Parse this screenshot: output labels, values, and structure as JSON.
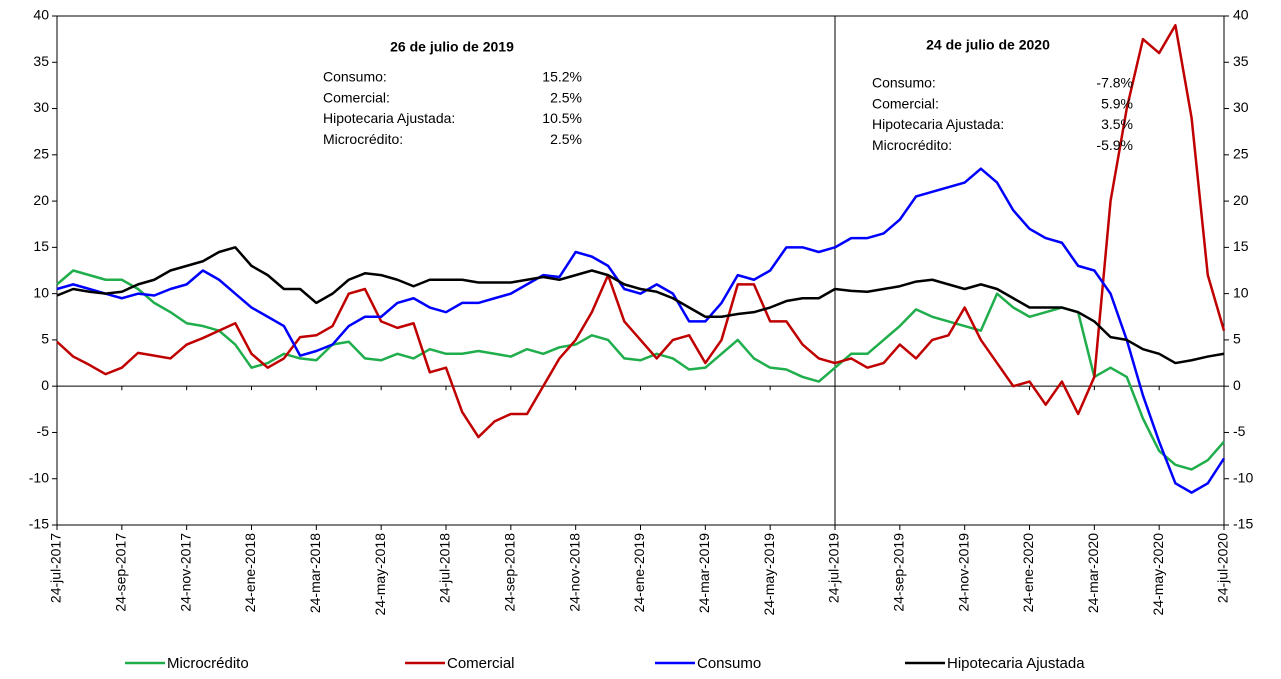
{
  "chart_data": {
    "type": "line",
    "categories": [
      "24-jul-2017",
      null,
      null,
      null,
      "24-sep-2017",
      null,
      null,
      null,
      "24-nov-2017",
      null,
      null,
      null,
      "24-ene-2018",
      null,
      null,
      null,
      "24-mar-2018",
      null,
      null,
      null,
      "24-may-2018",
      null,
      null,
      null,
      "24-jul-2018",
      null,
      null,
      null,
      "24-sep-2018",
      null,
      null,
      null,
      "24-nov-2018",
      null,
      null,
      null,
      "24-ene-2019",
      null,
      null,
      null,
      "24-mar-2019",
      null,
      null,
      null,
      "24-may-2019",
      null,
      null,
      null,
      "24-jul-2019",
      null,
      null,
      null,
      "24-sep-2019",
      null,
      null,
      null,
      "24-nov-2019",
      null,
      null,
      null,
      "24-ene-2020",
      null,
      null,
      null,
      "24-mar-2020",
      null,
      null,
      null,
      "24-may-2020",
      null,
      null,
      null,
      "24-jul-2020"
    ],
    "series": [
      {
        "name": "Microcrédito",
        "color": "#1fae4b",
        "values": [
          11,
          12.5,
          12,
          11.5,
          11.5,
          10.5,
          9,
          8,
          6.8,
          6.5,
          6,
          4.5,
          2,
          2.5,
          3.5,
          3,
          2.8,
          4.5,
          4.8,
          3,
          2.8,
          3.5,
          3,
          4,
          3.5,
          3.5,
          3.8,
          3.5,
          3.2,
          4,
          3.5,
          4.2,
          4.5,
          5.5,
          5,
          3,
          2.8,
          3.5,
          3,
          1.8,
          2,
          3.5,
          5,
          3,
          2,
          1.8,
          1,
          0.5,
          2,
          3.5,
          3.5,
          5,
          6.5,
          8.3,
          7.5,
          7,
          6.5,
          6,
          10,
          8.5,
          7.5,
          8,
          8.5,
          8,
          1,
          2,
          1,
          -3.5,
          -7,
          -8.5,
          -9,
          -8,
          -6
        ]
      },
      {
        "name": "Comercial",
        "color": "#c00000",
        "values": [
          4.8,
          3.2,
          2.3,
          1.3,
          2,
          3.6,
          3.3,
          3,
          4.5,
          5.2,
          6,
          6.8,
          3.5,
          2,
          3,
          5.3,
          5.5,
          6.5,
          10,
          10.5,
          7,
          6.3,
          6.8,
          1.5,
          2,
          -2.8,
          -5.5,
          -3.8,
          -3,
          -3,
          0,
          3,
          5,
          8,
          12,
          7,
          5,
          3,
          5,
          5.5,
          2.5,
          5,
          11,
          11,
          7,
          7,
          4.5,
          3,
          2.5,
          3,
          2,
          2.5,
          4.5,
          3,
          5,
          5.5,
          8.5,
          5,
          2.5,
          0,
          0.5,
          -2,
          0.5,
          -3,
          1,
          20,
          30,
          37.5,
          36,
          39,
          29,
          12,
          6
        ]
      },
      {
        "name": "Consumo",
        "color": "#0000ff",
        "values": [
          10.5,
          11,
          10.5,
          10,
          9.5,
          10,
          9.8,
          10.5,
          11,
          12.5,
          11.5,
          10,
          8.5,
          7.5,
          6.5,
          3.3,
          3.8,
          4.5,
          6.5,
          7.5,
          7.5,
          9,
          9.5,
          8.5,
          8,
          9,
          9,
          9.5,
          10,
          11,
          12,
          11.8,
          14.5,
          14,
          13,
          10.5,
          10,
          11,
          10,
          7,
          7,
          9,
          12,
          11.5,
          12.5,
          15,
          15,
          14.5,
          15,
          16,
          16,
          16.5,
          18,
          20.5,
          21,
          21.5,
          22,
          23.5,
          22,
          19,
          17,
          16,
          15.5,
          13,
          12.5,
          10,
          5,
          -1,
          -6,
          -10.5,
          -11.5,
          -10.5,
          -7.8
        ]
      },
      {
        "name": "Hipotecaria Ajustada",
        "color": "#000000",
        "values": [
          9.8,
          10.5,
          10.2,
          10,
          10.2,
          11,
          11.5,
          12.5,
          13,
          13.5,
          14.5,
          15,
          13,
          12,
          10.5,
          10.5,
          9,
          10,
          11.5,
          12.2,
          12,
          11.5,
          10.8,
          11.5,
          11.5,
          11.5,
          11.2,
          11.2,
          11.2,
          11.5,
          11.8,
          11.5,
          12,
          12.5,
          12,
          11,
          10.5,
          10.2,
          9.5,
          8.5,
          7.5,
          7.5,
          7.8,
          8,
          8.5,
          9.2,
          9.5,
          9.5,
          10.5,
          10.3,
          10.2,
          10.5,
          10.8,
          11.3,
          11.5,
          11,
          10.5,
          11,
          10.5,
          9.5,
          8.5,
          8.5,
          8.5,
          8,
          7,
          5.3,
          5,
          4,
          3.5,
          2.5,
          2.8,
          3.2,
          3.5
        ]
      }
    ],
    "ylim": [
      -15,
      40
    ],
    "yticks": [
      -15,
      -10,
      -5,
      0,
      5,
      10,
      15,
      20,
      25,
      30,
      35,
      40
    ],
    "y2lim": [
      -15,
      40
    ],
    "y2ticks": [
      -15,
      -10,
      -5,
      0,
      5,
      10,
      15,
      20,
      25,
      30,
      35,
      40
    ],
    "vline": "24-jul-2019",
    "legend": "bottom",
    "annotations": [
      {
        "title": "26 de julio de 2019",
        "rows": [
          {
            "label": "Consumo:",
            "value": "15.2%"
          },
          {
            "label": "Comercial:",
            "value": "2.5%"
          },
          {
            "label": "Hipotecaria Ajustada:",
            "value": "10.5%"
          },
          {
            "label": "Microcrédito:",
            "value": "2.5%"
          }
        ]
      },
      {
        "title": "24 de julio de 2020",
        "rows": [
          {
            "label": "Consumo:",
            "value": "-7.8%"
          },
          {
            "label": "Comercial:",
            "value": "5.9%"
          },
          {
            "label": "Hipotecaria Ajustada:",
            "value": "3.5%"
          },
          {
            "label": "Microcrédito:",
            "value": "-5.9%"
          }
        ]
      }
    ]
  }
}
